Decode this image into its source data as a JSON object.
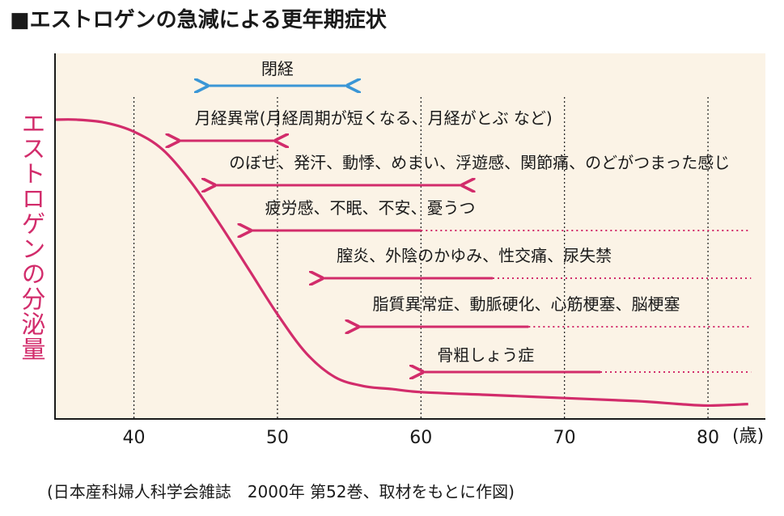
{
  "title": "■エストロゲンの急減による更年期症状",
  "source": "(日本産科婦人科学会雑誌　2000年 第52巻、取材をもとに作図)",
  "colors": {
    "background": "#fbf3e6",
    "curve": "#d22c6b",
    "bracket": "#3a96d6",
    "axis": "#1a1a1a",
    "text": "#1a1a1a"
  },
  "chart_data": {
    "type": "line",
    "xlabel": "(歳)",
    "ylabel": "エストロゲンの分泌量",
    "xlim": [
      34.5,
      84
    ],
    "x_ticks": [
      40,
      50,
      60,
      70,
      80
    ],
    "x_tick_labels": [
      "40",
      "50",
      "60",
      "70",
      "80"
    ],
    "grid": "vertical-dotted",
    "series": [
      {
        "values": [
          [
            34.5,
            0.97
          ],
          [
            36,
            0.97
          ],
          [
            38,
            0.96
          ],
          [
            40,
            0.93
          ],
          [
            42,
            0.87
          ],
          [
            44,
            0.76
          ],
          [
            46,
            0.62
          ],
          [
            48,
            0.47
          ],
          [
            50,
            0.32
          ],
          [
            52,
            0.19
          ],
          [
            54,
            0.11
          ],
          [
            56,
            0.08
          ],
          [
            58,
            0.07
          ],
          [
            60,
            0.06
          ],
          [
            65,
            0.05
          ],
          [
            70,
            0.04
          ],
          [
            75,
            0.03
          ],
          [
            78,
            0.02
          ],
          [
            80,
            0.015
          ],
          [
            82.8,
            0.02
          ]
        ]
      }
    ],
    "range_annotations": [
      {
        "label": "閉経",
        "start": 45,
        "end": 55,
        "style": "double-arrow"
      },
      {
        "label": "月経異常(月経周期が短くなる、月経がとぶ など)",
        "start": 43,
        "end": 50,
        "style": "double-arrow"
      },
      {
        "label": "のぼせ、発汗、動悸、めまい、浮遊感、関節痛、のどがつまった感じ",
        "start": 45.5,
        "end": 63,
        "style": "double-arrow"
      },
      {
        "label": "疲労感、不眠、不安、憂うつ",
        "start": 48,
        "end": 60,
        "dotted_to": 83
      },
      {
        "label": "膣炎、外陰のかゆみ、性交痛、尿失禁",
        "start": 53,
        "end": 65,
        "dotted_to": 83
      },
      {
        "label": "脂質異常症、動脈硬化、心筋梗塞、脳梗塞",
        "start": 55.5,
        "end": 67.5,
        "dotted_to": 83
      },
      {
        "label": "骨粗しょう症",
        "start": 60,
        "end": 72.5,
        "dotted_to": 83
      }
    ]
  }
}
